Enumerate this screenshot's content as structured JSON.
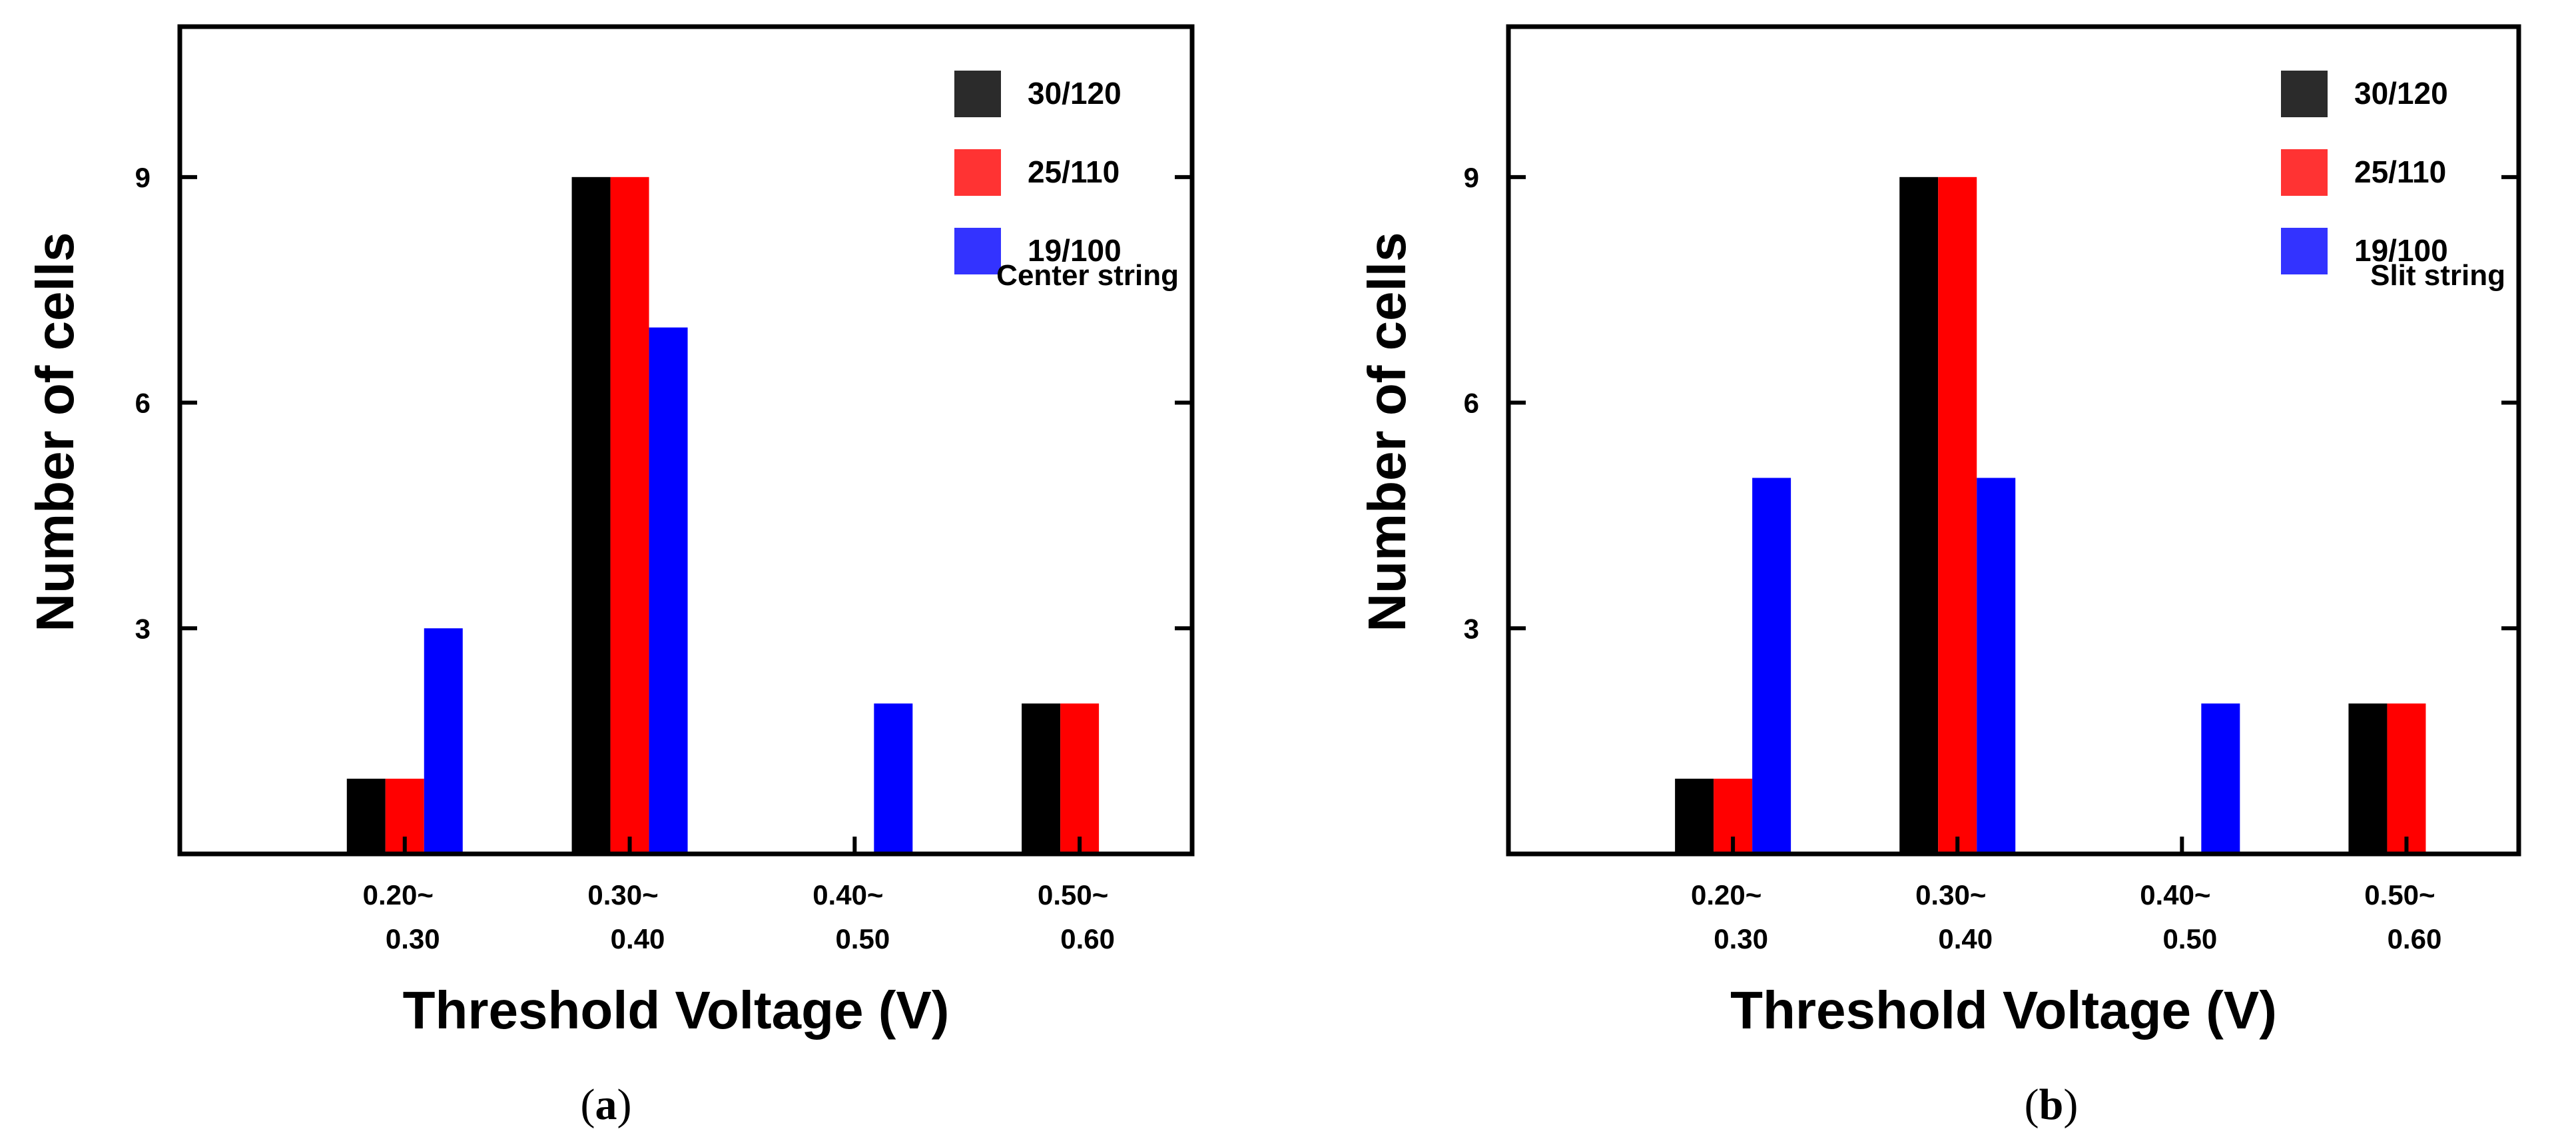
{
  "chart_data": [
    {
      "id": "a",
      "type": "bar",
      "caption": "a",
      "annotation": "Center string",
      "xlabel": "Threshold Voltage (V)",
      "ylabel": "Number of cells",
      "ylim": [
        0,
        11
      ],
      "yticks": [
        3,
        6,
        9
      ],
      "ytick_labels": [
        "3",
        "6",
        "9"
      ],
      "categories": [
        {
          "line1": "0.20~",
          "line2": "0.30"
        },
        {
          "line1": "0.30~",
          "line2": "0.40"
        },
        {
          "line1": "0.40~",
          "line2": "0.50"
        },
        {
          "line1": "0.50~",
          "line2": "0.60"
        }
      ],
      "series": [
        {
          "name": "30/120",
          "color": "#000000",
          "legend_color": "#2b2b2b",
          "values": [
            1,
            9,
            0,
            2
          ]
        },
        {
          "name": "25/110",
          "color": "#ff0000",
          "legend_color": "#ff3333",
          "values": [
            1,
            9,
            0,
            2
          ]
        },
        {
          "name": "19/100",
          "color": "#0000ff",
          "legend_color": "#3333ff",
          "values": [
            3,
            7,
            2,
            0
          ]
        }
      ],
      "legend_position": "top-right"
    },
    {
      "id": "b",
      "type": "bar",
      "caption": "b",
      "annotation": "Slit string",
      "xlabel": "Threshold Voltage (V)",
      "ylabel": "Number of cells",
      "ylim": [
        0,
        11
      ],
      "yticks": [
        3,
        6,
        9
      ],
      "ytick_labels": [
        "3",
        "6",
        "9"
      ],
      "categories": [
        {
          "line1": "0.20~",
          "line2": "0.30"
        },
        {
          "line1": "0.30~",
          "line2": "0.40"
        },
        {
          "line1": "0.40~",
          "line2": "0.50"
        },
        {
          "line1": "0.50~",
          "line2": "0.60"
        }
      ],
      "series": [
        {
          "name": "30/120",
          "color": "#000000",
          "legend_color": "#2b2b2b",
          "values": [
            1,
            9,
            0,
            2
          ]
        },
        {
          "name": "25/110",
          "color": "#ff0000",
          "legend_color": "#ff3333",
          "values": [
            1,
            9,
            0,
            2
          ]
        },
        {
          "name": "19/100",
          "color": "#0000ff",
          "legend_color": "#3333ff",
          "values": [
            5,
            5,
            2,
            0
          ]
        }
      ],
      "legend_position": "top-right"
    }
  ]
}
